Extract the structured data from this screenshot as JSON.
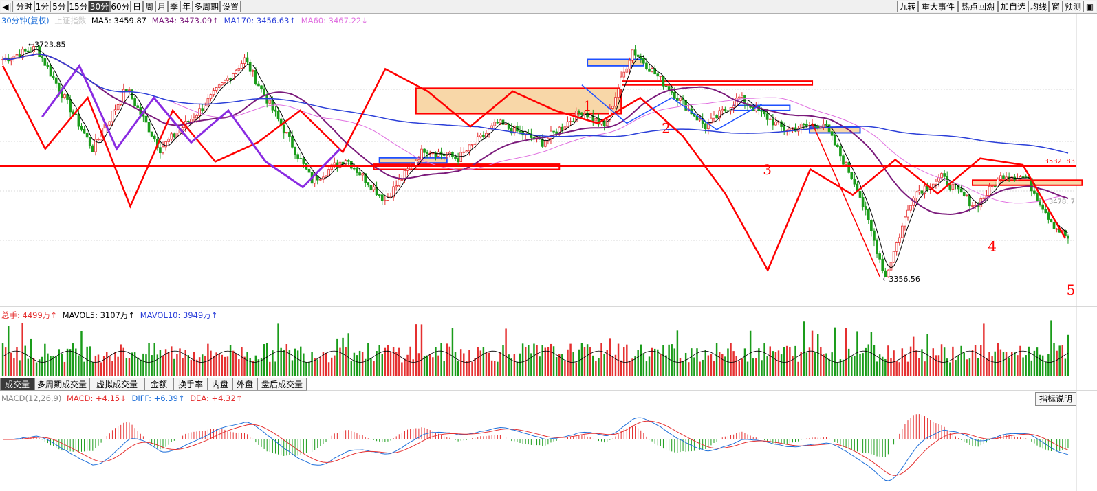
{
  "toolbar": {
    "left": [
      "分时",
      "1分",
      "5分",
      "15分",
      "30分",
      "60分",
      "日",
      "周",
      "月",
      "季",
      "年",
      "多周期",
      "设置"
    ],
    "active": "30分",
    "right": [
      "九转",
      "重大事件",
      "热点回溯",
      "加自选",
      "均线",
      "窗",
      "预测"
    ]
  },
  "legend_main": {
    "period": "30分钟(复权)",
    "index_name": "上证指数",
    "ma5": "MA5: 3459.87",
    "ma34": "MA34: 3473.09↑",
    "ma170": "MA170: 3456.63↑",
    "ma60": "MA60: 3467.22↓"
  },
  "legend_vol": {
    "total": "总手: 4499万↑",
    "mavol5": "MAVOL5: 3107万↑",
    "mavol10": "MAVOL10: 3949万↑"
  },
  "legend_macd": {
    "name": "MACD(12,26,9)",
    "macd": "MACD: +4.15↓",
    "diff": "DIFF: +6.39↑",
    "dea": "DEA: +4.32↑"
  },
  "bottom_tabs": [
    "成交量",
    "多周期成交量",
    "虚拟成交量",
    "金额",
    "换手率",
    "内盘",
    "外盘",
    "盘后成交量"
  ],
  "bottom_tab_active": "成交量",
  "indicator_help": "指标说明",
  "colors": {
    "up": "#e53030",
    "down": "#1a9c1a",
    "ma5": "#000000",
    "ma34": "#7b1a7b",
    "ma170": "#2b3fd8",
    "ma60": "#e070e0",
    "anno_red": "#ff0000",
    "anno_purple": "#8a2be2",
    "anno_blue": "#1e50ff",
    "zone_fill": "#f8d7a8"
  },
  "chart_data": {
    "type": "candlestick",
    "price_axis_labels": [
      "3532. 83",
      "3478. 7"
    ],
    "level_line": 3532.83,
    "high_label": "3723.85",
    "low_label": "3356.56",
    "wave_labels": [
      "1",
      "2",
      "3",
      "4",
      "5"
    ],
    "ylim": [
      3320,
      3750
    ],
    "high_value": 3723.85,
    "low_value": 3356.56,
    "tick_values": [
      3532.83,
      3478.7
    ],
    "zigzag_red": [
      3690,
      3560,
      3640,
      3470,
      3620,
      3540,
      3570,
      3620,
      3555,
      3685,
      3650,
      3595,
      3650,
      3620,
      3600,
      3640,
      3580,
      3490,
      3370,
      3528,
      3488,
      3543,
      3490,
      3545,
      3535,
      3420
    ],
    "zigzag_purple": [
      3610,
      3690,
      3560,
      3640,
      3570,
      3620,
      3540,
      3500,
      3560
    ],
    "zigzag_blue": [
      3660,
      3600,
      3640,
      3590,
      3630
    ],
    "volume_note": "volume histogram (万手)",
    "macd_note": "MACD histogram with DIFF / DEA lines"
  }
}
